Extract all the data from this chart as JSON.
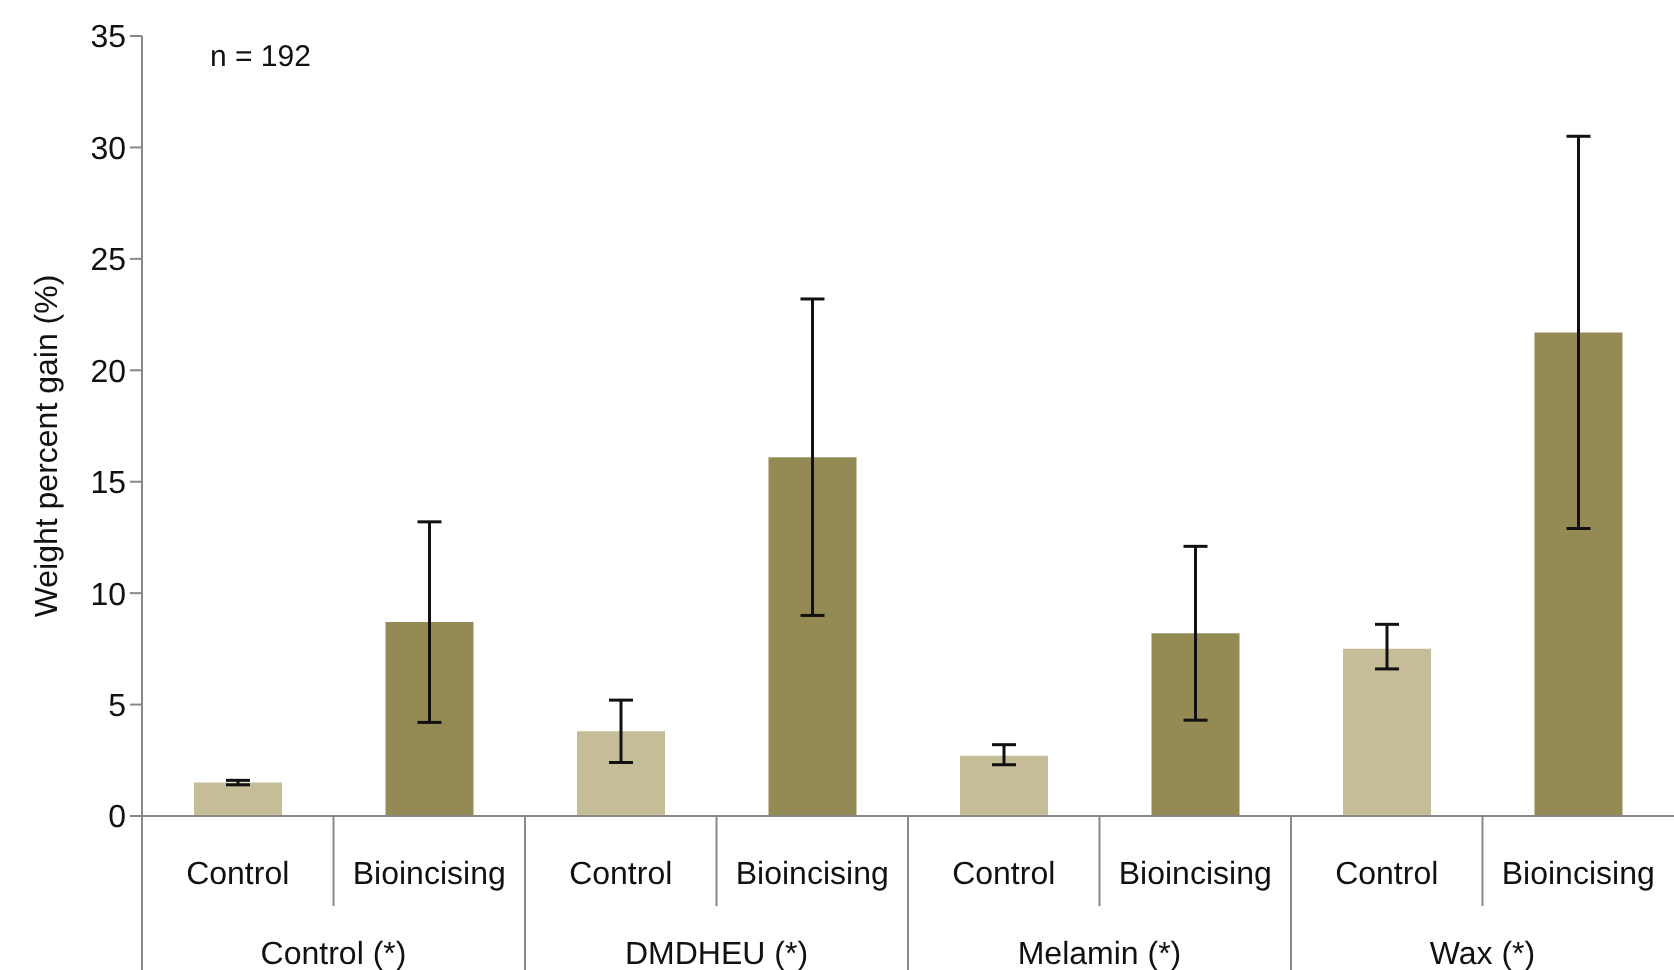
{
  "chart_data": {
    "type": "bar",
    "ylabel": "Weight percent gain (%)",
    "annotations": [
      "n = 192"
    ],
    "categories": [
      "Control (*)",
      "DMDHEU (*)",
      "Melamin (*)",
      "Wax (*)"
    ],
    "series": [
      {
        "name": "Control",
        "color": "#c4bd97",
        "values": [
          1.5,
          3.8,
          2.7,
          7.5
        ],
        "errors": [
          [
            1.4,
            1.6
          ],
          [
            2.4,
            5.2
          ],
          [
            2.3,
            3.2
          ],
          [
            6.6,
            8.6
          ]
        ]
      },
      {
        "name": "Bioincising",
        "color": "#948a54",
        "values": [
          8.7,
          16.1,
          8.2,
          21.7
        ],
        "errors": [
          [
            4.2,
            13.2
          ],
          [
            9.0,
            23.2
          ],
          [
            4.3,
            12.1
          ],
          [
            12.9,
            30.5
          ]
        ]
      }
    ],
    "ylim": [
      0,
      35
    ],
    "yticks": [
      0,
      5,
      10,
      15,
      20,
      25,
      30,
      35
    ]
  }
}
